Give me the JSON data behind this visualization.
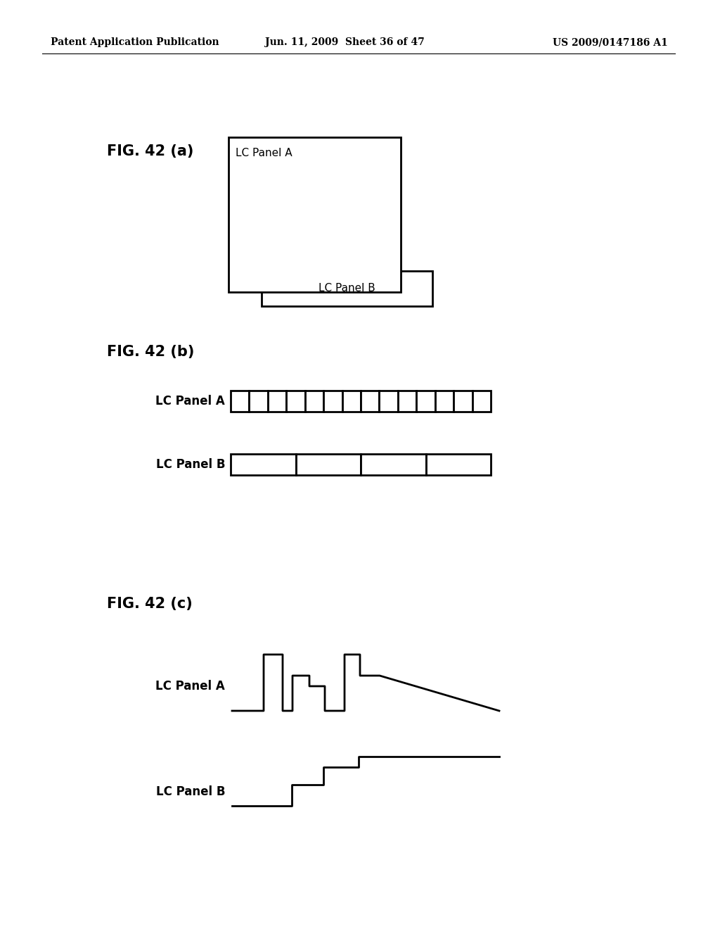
{
  "background_color": "#ffffff",
  "header_left": "Patent Application Publication",
  "header_center": "Jun. 11, 2009  Sheet 36 of 47",
  "header_right": "US 2009/0147186 A1",
  "fig_a_label": "FIG. 42 (a)",
  "fig_b_label": "FIG. 42 (b)",
  "fig_c_label": "FIG. 42 (c)",
  "lc_panel_a": "LC Panel A",
  "lc_panel_b": "LC Panel B",
  "panel_a_segments": 14,
  "panel_b_segments": 4
}
